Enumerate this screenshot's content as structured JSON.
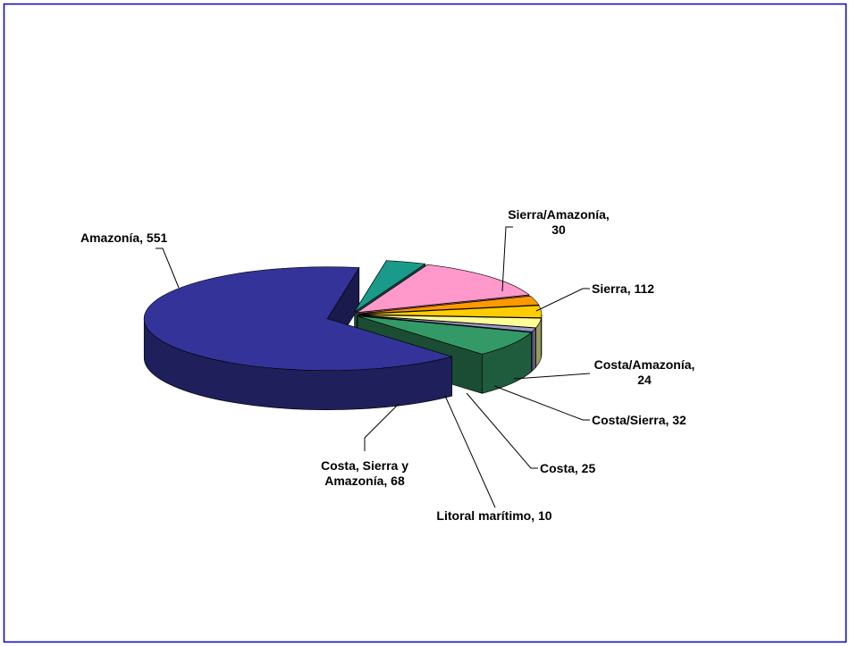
{
  "chart_data": {
    "type": "pie3d",
    "values": [
      30,
      112,
      24,
      32,
      25,
      10,
      68,
      551
    ],
    "value_labels": [
      "Sierra/Amazonía, 30",
      "Sierra, 112",
      "Costa/Amazonía, 24",
      "Costa/Sierra, 32",
      "Costa, 25",
      "Litoral marítimo, 10",
      "Costa, Sierra y Amazonía, 68",
      "Amazonía, 551"
    ],
    "colors": [
      "#1a9a8a",
      "#ff99cc",
      "#ff9900",
      "#ffcc00",
      "#ffff99",
      "#9999cc",
      "#339966",
      "#333399"
    ]
  }
}
